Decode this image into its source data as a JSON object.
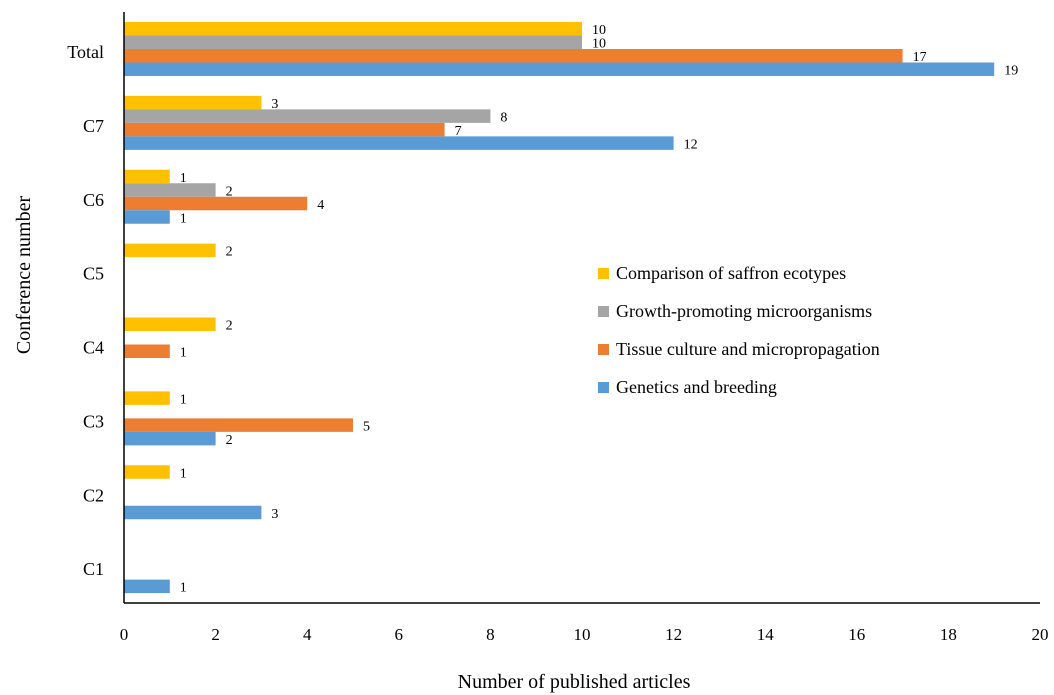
{
  "chart_data": {
    "type": "bar",
    "orientation": "horizontal",
    "categories": [
      "Total",
      "C7",
      "C6",
      "C5",
      "C4",
      "C3",
      "C2",
      "C1"
    ],
    "series": [
      {
        "name": "Comparison of saffron ecotypes",
        "color": "#FFC000",
        "values": [
          10,
          3,
          1,
          2,
          2,
          1,
          1,
          null
        ]
      },
      {
        "name": "Growth-promoting microorganisms",
        "color": "#A5A5A5",
        "values": [
          10,
          8,
          2,
          null,
          null,
          null,
          null,
          null
        ]
      },
      {
        "name": "Tissue culture and micropropagation",
        "color": "#ED7D31",
        "values": [
          17,
          7,
          4,
          null,
          1,
          5,
          null,
          null
        ]
      },
      {
        "name": "Genetics and breeding",
        "color": "#5B9BD5",
        "values": [
          19,
          12,
          1,
          null,
          null,
          2,
          3,
          1
        ]
      }
    ],
    "xlabel": "Number of published articles",
    "ylabel": "Conference number",
    "xlim": [
      0,
      20
    ],
    "xticks": [
      "0",
      "2",
      "4",
      "6",
      "8",
      "10",
      "12",
      "14",
      "16",
      "18",
      "20"
    ],
    "grid": false,
    "legend_position": "right"
  }
}
